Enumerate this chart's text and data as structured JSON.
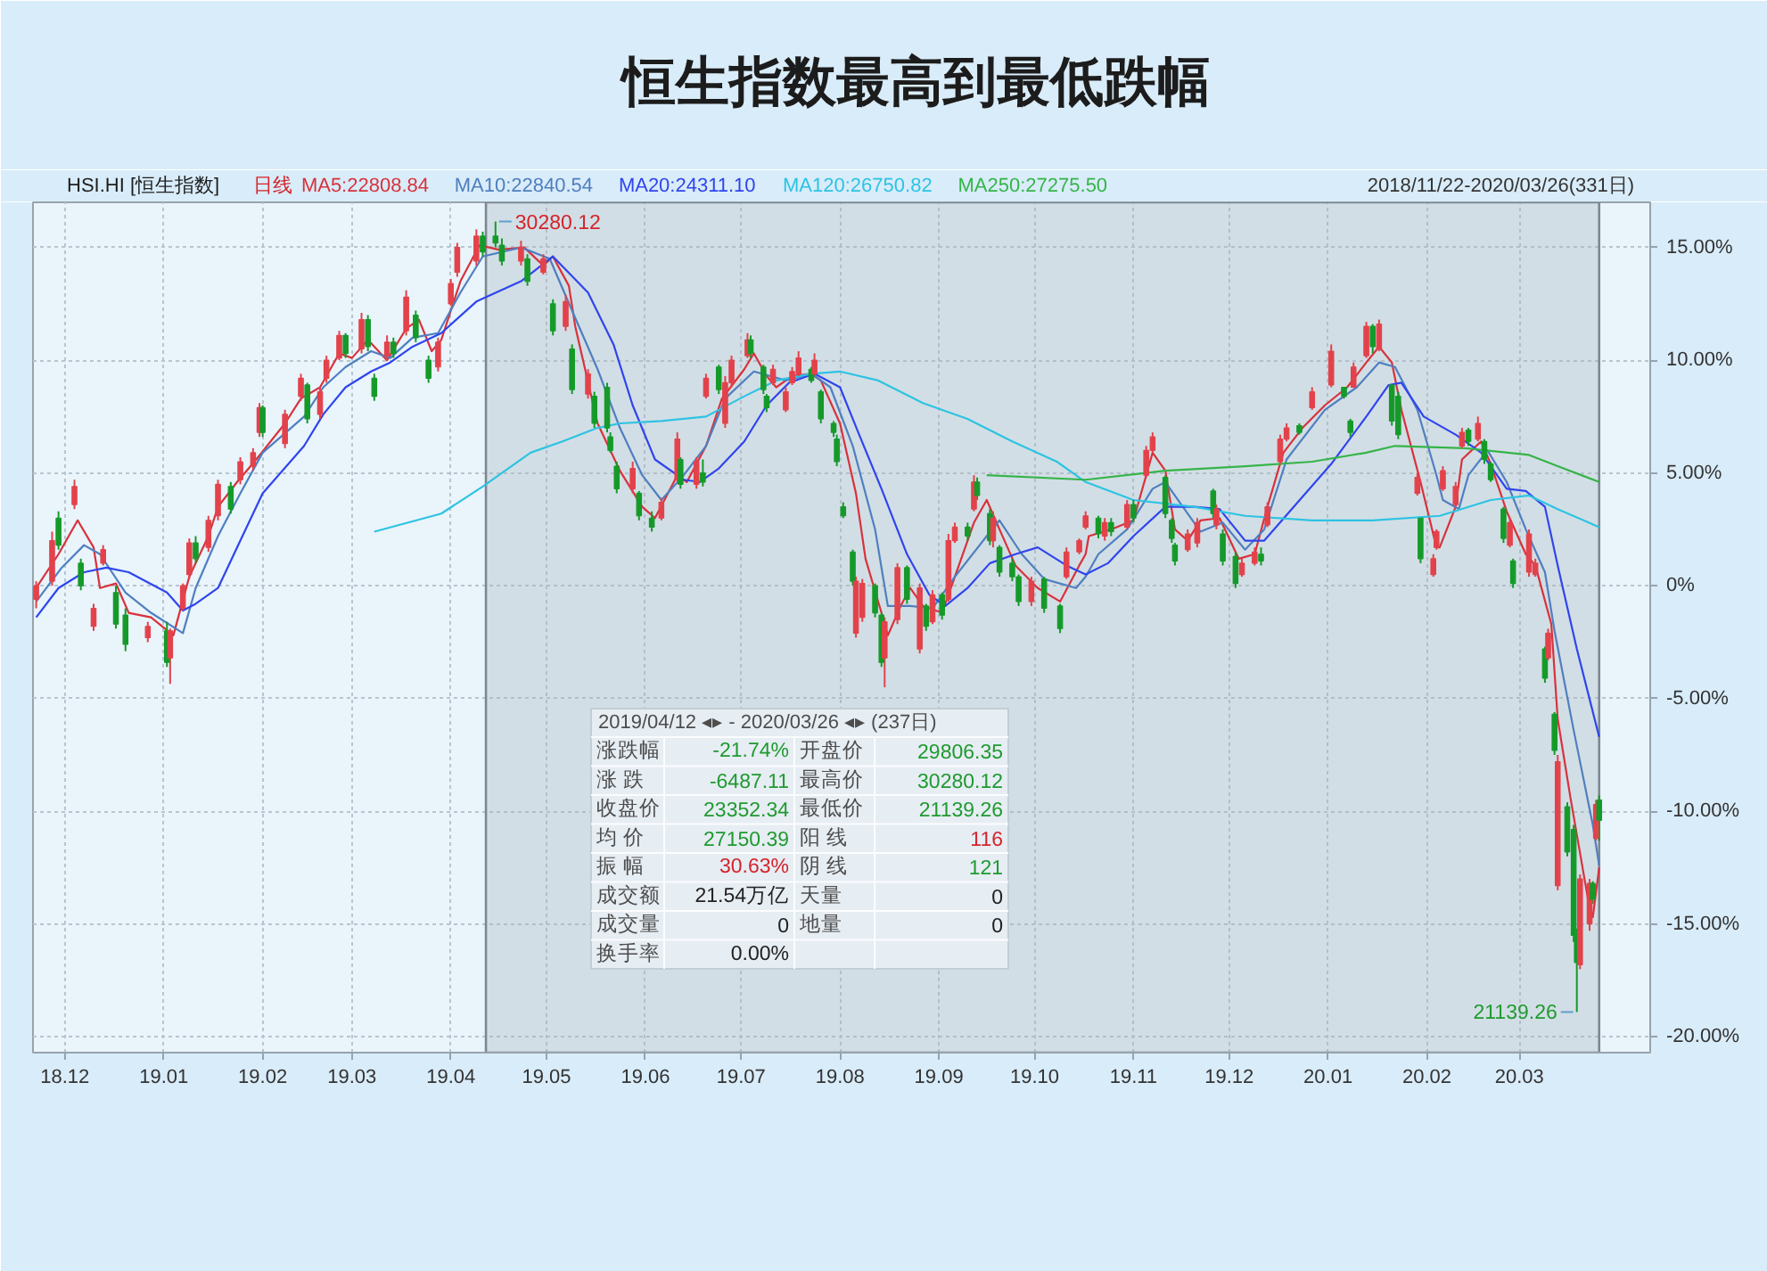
{
  "chart_data": {
    "type": "candlestick",
    "title": "恒生指数最高到最低跌幅",
    "subtitle": "HSI.HI [恒生指数]",
    "x": [
      "2018-11-22",
      "2018-11-27",
      "2018-11-29",
      "2018-12-04",
      "2018-12-06",
      "2018-12-10",
      "2018-12-13",
      "2018-12-17",
      "2018-12-20",
      "2018-12-27",
      "2019-01-02",
      "2019-01-03",
      "2019-01-07",
      "2019-01-09",
      "2019-01-11",
      "2019-01-15",
      "2019-01-18",
      "2019-01-22",
      "2019-01-25",
      "2019-01-29",
      "2019-01-31",
      "2019-02-01",
      "2019-02-08",
      "2019-02-13",
      "2019-02-15",
      "2019-02-19",
      "2019-02-21",
      "2019-02-25",
      "2019-02-27",
      "2019-03-04",
      "2019-03-06",
      "2019-03-08",
      "2019-03-12",
      "2019-03-14",
      "2019-03-18",
      "2019-03-21",
      "2019-03-25",
      "2019-03-28",
      "2019-04-01",
      "2019-04-03",
      "2019-04-09",
      "2019-04-11",
      "2019-04-15",
      "2019-04-17",
      "2019-04-23",
      "2019-04-25",
      "2019-04-30",
      "2019-05-03",
      "2019-05-07",
      "2019-05-09",
      "2019-05-14",
      "2019-05-16",
      "2019-05-20",
      "2019-05-21",
      "2019-05-23",
      "2019-05-28",
      "2019-05-30",
      "2019-06-03",
      "2019-06-06",
      "2019-06-11",
      "2019-06-12",
      "2019-06-17",
      "2019-06-19",
      "2019-06-20",
      "2019-06-24",
      "2019-06-26",
      "2019-06-28",
      "2019-07-03",
      "2019-07-04",
      "2019-07-08",
      "2019-07-09",
      "2019-07-11",
      "2019-07-15",
      "2019-07-17",
      "2019-07-19",
      "2019-07-23",
      "2019-07-24",
      "2019-07-26",
      "2019-07-30",
      "2019-07-31",
      "2019-08-02",
      "2019-08-05",
      "2019-08-06",
      "2019-08-08",
      "2019-08-12",
      "2019-08-14",
      "2019-08-15",
      "2019-08-19",
      "2019-08-22",
      "2019-08-26",
      "2019-08-28",
      "2019-08-30",
      "2019-09-02",
      "2019-09-04",
      "2019-09-06",
      "2019-09-10",
      "2019-09-12",
      "2019-09-13",
      "2019-09-17",
      "2019-09-18",
      "2019-09-20",
      "2019-09-24",
      "2019-09-26",
      "2019-09-30",
      "2019-10-04",
      "2019-10-09",
      "2019-10-11",
      "2019-10-15",
      "2019-10-17",
      "2019-10-21",
      "2019-10-23",
      "2019-10-25",
      "2019-10-30",
      "2019-11-01",
      "2019-11-05",
      "2019-11-07",
      "2019-11-11",
      "2019-11-13",
      "2019-11-14",
      "2019-11-18",
      "2019-11-21",
      "2019-11-26",
      "2019-11-27",
      "2019-11-29",
      "2019-12-03",
      "2019-12-05",
      "2019-12-09",
      "2019-12-11",
      "2019-12-13",
      "2019-12-17",
      "2019-12-19",
      "2019-12-23",
      "2019-12-27",
      "2020-01-02",
      "2020-01-06",
      "2020-01-08",
      "2020-01-09",
      "2020-01-13",
      "2020-01-15",
      "2020-01-17",
      "2020-01-21",
      "2020-01-23",
      "2020-01-29",
      "2020-01-30",
      "2020-02-03",
      "2020-02-04",
      "2020-02-06",
      "2020-02-10",
      "2020-02-12",
      "2020-02-14",
      "2020-02-17",
      "2020-02-19",
      "2020-02-21",
      "2020-02-25",
      "2020-02-27",
      "2020-02-28",
      "2020-03-04",
      "2020-03-06",
      "2020-03-09",
      "2020-03-10",
      "2020-03-12",
      "2020-03-13",
      "2020-03-16",
      "2020-03-18",
      "2020-03-19",
      "2020-03-20",
      "2020-03-23",
      "2020-03-24",
      "2020-03-25",
      "2020-03-26"
    ],
    "ohlc": [
      [
        -0.6,
        0.2,
        -1.0,
        0.0
      ],
      [
        0.2,
        2.4,
        0.0,
        2.0
      ],
      [
        3.0,
        3.3,
        1.6,
        1.8
      ],
      [
        3.6,
        4.7,
        3.4,
        4.4
      ],
      [
        1.0,
        1.2,
        -0.2,
        0.0
      ],
      [
        -1.8,
        -0.8,
        -2.0,
        -1.0
      ],
      [
        1.0,
        1.8,
        0.9,
        1.6
      ],
      [
        -0.3,
        0.0,
        -1.9,
        -1.7
      ],
      [
        -1.3,
        -1.0,
        -2.9,
        -2.6
      ],
      [
        -2.3,
        -1.6,
        -2.5,
        -1.8
      ],
      [
        -2.0,
        -1.6,
        -3.6,
        -3.4
      ],
      [
        -3.2,
        -1.9,
        -4.35,
        -2.0
      ],
      [
        -1.0,
        0.1,
        -1.1,
        0.0
      ],
      [
        0.5,
        2.1,
        0.3,
        1.9
      ],
      [
        1.9,
        2.2,
        1.0,
        1.2
      ],
      [
        1.7,
        3.1,
        1.5,
        2.9
      ],
      [
        3.1,
        4.7,
        2.9,
        4.5
      ],
      [
        4.4,
        4.6,
        3.2,
        3.4
      ],
      [
        4.7,
        5.7,
        4.5,
        5.5
      ],
      [
        5.3,
        6.1,
        5.1,
        5.9
      ],
      [
        6.8,
        8.1,
        6.6,
        7.9
      ],
      [
        7.9,
        8.0,
        6.6,
        6.8
      ],
      [
        6.3,
        7.8,
        6.1,
        7.6
      ],
      [
        8.4,
        9.4,
        8.2,
        9.2
      ],
      [
        8.9,
        9.0,
        7.2,
        7.4
      ],
      [
        7.6,
        8.8,
        7.4,
        8.6
      ],
      [
        9.2,
        10.2,
        9.0,
        10.0
      ],
      [
        10.1,
        11.3,
        10.0,
        11.1
      ],
      [
        11.1,
        11.2,
        10.1,
        10.3
      ],
      [
        10.5,
        12.1,
        10.3,
        11.8
      ],
      [
        11.8,
        12.0,
        10.4,
        10.6
      ],
      [
        9.2,
        9.4,
        8.2,
        8.4
      ],
      [
        10.2,
        11.1,
        10.0,
        10.8
      ],
      [
        10.8,
        11.0,
        10.1,
        10.3
      ],
      [
        11.3,
        13.1,
        11.1,
        12.8
      ],
      [
        12.0,
        12.2,
        10.8,
        11.0
      ],
      [
        10.0,
        10.2,
        9.0,
        9.2
      ],
      [
        9.7,
        11.0,
        9.5,
        10.8
      ],
      [
        12.5,
        13.6,
        12.4,
        13.4
      ],
      [
        13.9,
        15.2,
        13.7,
        15.0
      ],
      [
        14.4,
        15.8,
        14.2,
        15.5
      ],
      [
        15.5,
        15.7,
        14.6,
        14.8
      ],
      [
        15.5,
        16.15,
        15.0,
        15.2
      ],
      [
        15.1,
        15.4,
        14.2,
        14.4
      ],
      [
        14.4,
        15.3,
        14.2,
        15.0
      ],
      [
        14.5,
        14.7,
        13.3,
        13.5
      ],
      [
        13.9,
        14.7,
        13.8,
        14.5
      ],
      [
        12.5,
        12.7,
        11.1,
        11.3
      ],
      [
        11.5,
        12.9,
        11.3,
        12.6
      ],
      [
        10.5,
        10.7,
        8.5,
        8.7
      ],
      [
        8.5,
        9.6,
        8.3,
        9.4
      ],
      [
        8.4,
        8.6,
        7.0,
        7.2
      ],
      [
        8.8,
        9.0,
        6.8,
        7.0
      ],
      [
        6.6,
        6.8,
        5.9,
        6.0
      ],
      [
        5.3,
        5.5,
        4.1,
        4.3
      ],
      [
        4.3,
        5.5,
        4.1,
        5.2
      ],
      [
        4.1,
        4.2,
        2.9,
        3.1
      ],
      [
        3.0,
        3.3,
        2.4,
        2.6
      ],
      [
        3.0,
        3.9,
        2.9,
        3.7
      ],
      [
        4.7,
        6.8,
        4.6,
        6.5
      ],
      [
        5.6,
        5.7,
        4.3,
        4.5
      ],
      [
        4.5,
        5.7,
        4.3,
        5.5
      ],
      [
        5.0,
        5.6,
        4.4,
        4.6
      ],
      [
        8.4,
        9.4,
        8.3,
        9.2
      ],
      [
        9.7,
        9.8,
        8.5,
        8.7
      ],
      [
        7.2,
        9.3,
        7.0,
        9.0
      ],
      [
        9.0,
        10.2,
        8.8,
        10.0
      ],
      [
        10.2,
        11.2,
        10.1,
        10.9
      ],
      [
        10.9,
        11.1,
        10.1,
        10.3
      ],
      [
        9.7,
        9.8,
        8.5,
        8.7
      ],
      [
        8.4,
        8.5,
        7.7,
        7.9
      ],
      [
        9.0,
        9.8,
        8.9,
        9.6
      ],
      [
        7.8,
        8.8,
        7.7,
        8.6
      ],
      [
        9.0,
        9.7,
        8.9,
        9.5
      ],
      [
        9.4,
        10.4,
        9.3,
        10.1
      ],
      [
        9.6,
        9.7,
        9.0,
        9.1
      ],
      [
        9.4,
        10.3,
        9.3,
        10.0
      ],
      [
        8.6,
        8.7,
        7.2,
        7.4
      ],
      [
        7.2,
        7.3,
        6.6,
        6.8
      ],
      [
        6.5,
        6.7,
        5.3,
        5.5
      ],
      [
        3.5,
        3.7,
        3.0,
        3.1
      ],
      [
        1.5,
        1.6,
        0.0,
        0.2
      ],
      [
        -2.1,
        0.4,
        -2.3,
        0.2
      ],
      [
        -1.4,
        0.3,
        -1.6,
        0.1
      ],
      [
        0.0,
        0.1,
        -1.4,
        -1.2
      ],
      [
        -1.3,
        -1.2,
        -3.6,
        -3.4
      ],
      [
        -3.2,
        -1.4,
        -4.5,
        -1.6
      ],
      [
        -1.5,
        1.0,
        -1.7,
        0.8
      ],
      [
        0.8,
        0.9,
        -0.8,
        -0.6
      ],
      [
        -2.8,
        0.1,
        -3.0,
        -0.1
      ],
      [
        -0.9,
        -0.8,
        -2.0,
        -1.8
      ],
      [
        -1.6,
        -0.2,
        -1.7,
        -0.4
      ],
      [
        -0.4,
        -0.3,
        -1.5,
        -1.3
      ],
      [
        -0.6,
        2.3,
        -0.7,
        2.0
      ],
      [
        2.0,
        2.8,
        1.9,
        2.6
      ],
      [
        2.6,
        2.8,
        2.0,
        2.2
      ],
      [
        3.4,
        4.9,
        3.3,
        4.6
      ],
      [
        4.6,
        4.8,
        3.8,
        4.0
      ],
      [
        3.2,
        3.4,
        1.8,
        2.0
      ],
      [
        2.0,
        3.3,
        1.7,
        3.0
      ],
      [
        1.7,
        1.8,
        0.4,
        0.6
      ],
      [
        1.0,
        1.2,
        0.2,
        0.4
      ],
      [
        0.4,
        0.5,
        -0.9,
        -0.7
      ],
      [
        -0.7,
        0.4,
        -0.9,
        0.2
      ],
      [
        0.3,
        0.4,
        -1.2,
        -1.0
      ],
      [
        -0.9,
        -0.8,
        -2.1,
        -1.9
      ],
      [
        0.4,
        1.7,
        0.3,
        1.5
      ],
      [
        1.5,
        2.1,
        1.4,
        2.0
      ],
      [
        2.6,
        3.3,
        2.5,
        3.1
      ],
      [
        3.0,
        3.1,
        2.1,
        2.3
      ],
      [
        2.2,
        3.0,
        2.0,
        2.8
      ],
      [
        2.8,
        3.0,
        2.2,
        2.4
      ],
      [
        2.6,
        3.8,
        2.5,
        3.6
      ],
      [
        3.6,
        3.8,
        2.8,
        3.0
      ],
      [
        4.9,
        6.2,
        4.8,
        6.0
      ],
      [
        6.0,
        6.8,
        5.9,
        6.6
      ],
      [
        4.8,
        4.9,
        3.0,
        3.2
      ],
      [
        2.9,
        3.0,
        1.9,
        2.1
      ],
      [
        1.8,
        1.9,
        0.9,
        1.1
      ],
      [
        1.6,
        2.5,
        1.5,
        2.3
      ],
      [
        1.9,
        3.0,
        1.7,
        2.8
      ],
      [
        4.2,
        4.3,
        3.0,
        3.2
      ],
      [
        2.7,
        3.6,
        2.5,
        3.4
      ],
      [
        2.3,
        2.5,
        0.9,
        1.1
      ],
      [
        1.3,
        1.5,
        -0.1,
        0.1
      ],
      [
        0.5,
        1.2,
        0.4,
        1.0
      ],
      [
        1.0,
        1.7,
        0.9,
        1.5
      ],
      [
        1.4,
        1.7,
        0.9,
        1.1
      ],
      [
        2.7,
        3.7,
        2.6,
        3.5
      ],
      [
        5.5,
        6.7,
        5.4,
        6.5
      ],
      [
        6.5,
        7.2,
        6.4,
        7.0
      ],
      [
        7.1,
        7.2,
        6.7,
        6.8
      ],
      [
        7.9,
        8.8,
        7.8,
        8.6
      ],
      [
        8.9,
        10.7,
        8.8,
        10.4
      ],
      [
        8.8,
        8.8,
        8.3,
        8.4
      ],
      [
        7.3,
        7.4,
        6.6,
        6.8
      ],
      [
        8.8,
        9.9,
        8.8,
        9.7
      ],
      [
        10.2,
        11.7,
        10.1,
        11.5
      ],
      [
        11.5,
        11.6,
        10.3,
        10.6
      ],
      [
        10.5,
        11.8,
        10.4,
        11.6
      ],
      [
        8.9,
        8.9,
        7.1,
        7.3
      ],
      [
        8.4,
        8.6,
        6.5,
        6.7
      ],
      [
        4.1,
        5.0,
        4.0,
        4.8
      ],
      [
        3.0,
        3.0,
        1.0,
        1.2
      ],
      [
        0.5,
        1.4,
        0.4,
        1.2
      ],
      [
        1.7,
        2.5,
        1.6,
        2.4
      ],
      [
        4.3,
        5.3,
        4.2,
        5.1
      ],
      [
        3.6,
        4.6,
        3.5,
        4.4
      ],
      [
        6.2,
        7.0,
        6.1,
        6.8
      ],
      [
        6.9,
        7.0,
        6.2,
        6.4
      ],
      [
        6.5,
        7.5,
        6.4,
        7.2
      ],
      [
        6.4,
        6.5,
        5.4,
        5.6
      ],
      [
        5.4,
        5.5,
        4.6,
        4.7
      ],
      [
        3.4,
        3.5,
        1.9,
        2.1
      ],
      [
        1.8,
        3.0,
        1.7,
        2.8
      ],
      [
        1.1,
        1.2,
        -0.1,
        0.1
      ],
      [
        0.6,
        2.5,
        0.4,
        2.3
      ],
      [
        0.5,
        1.2,
        0.4,
        1.0
      ],
      [
        -2.8,
        -2.7,
        -4.3,
        -4.1
      ],
      [
        -3.2,
        -1.9,
        -3.3,
        -2.1
      ],
      [
        -5.7,
        -5.6,
        -7.5,
        -7.3
      ],
      [
        -13.3,
        -7.5,
        -13.5,
        -7.8
      ],
      [
        -9.8,
        -9.6,
        -12.0,
        -11.8
      ],
      [
        -10.8,
        -10.6,
        -15.8,
        -15.5
      ],
      [
        -15.5,
        -15.2,
        -18.9,
        -16.7
      ],
      [
        -16.8,
        -12.8,
        -17.0,
        -13.0
      ],
      [
        -15.0,
        -13.0,
        -15.3,
        -13.2
      ],
      [
        -13.2,
        -13.1,
        -14.1,
        -13.9
      ],
      [
        -11.2,
        -9.5,
        -11.3,
        -9.7
      ],
      [
        -9.5,
        -9.3,
        -11.3,
        -10.4
      ]
    ],
    "colors": [
      "#e3424b",
      "#e3424b",
      "#159a2a",
      "#e3424b",
      "#159a2a",
      "#e3424b",
      "#e3424b",
      "#159a2a",
      "#159a2a",
      "#e3424b",
      "#159a2a",
      "#e3424b",
      "#e3424b",
      "#e3424b",
      "#159a2a",
      "#e3424b",
      "#e3424b",
      "#159a2a",
      "#e3424b",
      "#e3424b",
      "#e3424b",
      "#159a2a",
      "#e3424b",
      "#e3424b",
      "#159a2a",
      "#e3424b",
      "#e3424b",
      "#e3424b",
      "#159a2a",
      "#e3424b",
      "#159a2a",
      "#159a2a",
      "#e3424b",
      "#159a2a",
      "#e3424b",
      "#159a2a",
      "#159a2a",
      "#e3424b",
      "#e3424b",
      "#e3424b",
      "#e3424b",
      "#159a2a",
      "#159a2a",
      "#159a2a",
      "#e3424b",
      "#159a2a",
      "#e3424b",
      "#159a2a",
      "#e3424b",
      "#159a2a",
      "#e3424b",
      "#159a2a",
      "#159a2a",
      "#159a2a",
      "#159a2a",
      "#e3424b",
      "#159a2a",
      "#159a2a",
      "#e3424b",
      "#e3424b",
      "#159a2a",
      "#e3424b",
      "#159a2a",
      "#e3424b",
      "#159a2a",
      "#e3424b",
      "#e3424b",
      "#e3424b",
      "#159a2a",
      "#159a2a",
      "#159a2a",
      "#e3424b",
      "#e3424b",
      "#e3424b",
      "#e3424b",
      "#159a2a",
      "#e3424b",
      "#159a2a",
      "#159a2a",
      "#159a2a",
      "#159a2a",
      "#159a2a",
      "#e3424b",
      "#e3424b",
      "#159a2a",
      "#159a2a",
      "#e3424b",
      "#e3424b",
      "#159a2a",
      "#e3424b",
      "#159a2a",
      "#e3424b",
      "#159a2a",
      "#e3424b",
      "#e3424b",
      "#159a2a",
      "#e3424b",
      "#159a2a",
      "#159a2a",
      "#e3424b",
      "#159a2a",
      "#159a2a",
      "#159a2a",
      "#e3424b",
      "#159a2a",
      "#159a2a",
      "#e3424b",
      "#e3424b",
      "#e3424b",
      "#159a2a",
      "#e3424b",
      "#159a2a",
      "#e3424b",
      "#159a2a",
      "#e3424b",
      "#e3424b",
      "#159a2a",
      "#159a2a",
      "#159a2a",
      "#e3424b",
      "#e3424b",
      "#159a2a",
      "#e3424b",
      "#159a2a",
      "#159a2a",
      "#e3424b",
      "#e3424b",
      "#159a2a",
      "#e3424b",
      "#e3424b",
      "#e3424b",
      "#159a2a",
      "#e3424b",
      "#e3424b",
      "#159a2a",
      "#159a2a",
      "#e3424b",
      "#e3424b",
      "#159a2a",
      "#e3424b",
      "#159a2a",
      "#159a2a",
      "#e3424b",
      "#159a2a",
      "#e3424b",
      "#e3424b",
      "#e3424b",
      "#e3424b",
      "#e3424b",
      "#159a2a",
      "#e3424b",
      "#159a2a",
      "#159a2a",
      "#159a2a",
      "#e3424b",
      "#159a2a",
      "#e3424b",
      "#e3424b",
      "#159a2a",
      "#e3424b",
      "#159a2a",
      "#e3424b",
      "#159a2a",
      "#159a2a",
      "#159a2a",
      "#e3424b",
      "#e3424b",
      "#159a2a",
      "#e3424b",
      "#159a2a"
    ],
    "series": [
      {
        "type": "line",
        "name": "MA5:22808.84",
        "color": "#d8323c",
        "x": [
          "2018-11-22",
          "2018-11-29",
          "2018-12-05",
          "2018-12-10",
          "2018-12-12",
          "2018-12-17",
          "2018-12-21",
          "2018-12-28",
          "2019-01-04",
          "2019-01-09",
          "2019-01-15",
          "2019-01-18",
          "2019-01-24",
          "2019-01-30",
          "2019-02-08",
          "2019-02-13",
          "2019-02-19",
          "2019-02-25",
          "2019-03-01",
          "2019-03-06",
          "2019-03-12",
          "2019-03-18",
          "2019-03-22",
          "2019-03-26",
          "2019-03-29",
          "2019-04-04",
          "2019-04-10",
          "2019-04-16",
          "2019-04-24",
          "2019-04-30",
          "2019-05-03",
          "2019-05-08",
          "2019-05-10",
          "2019-05-17",
          "2019-05-24",
          "2019-05-31",
          "2019-06-04",
          "2019-06-11",
          "2019-06-14",
          "2019-06-20",
          "2019-06-25",
          "2019-07-02",
          "2019-07-05",
          "2019-07-09",
          "2019-07-12",
          "2019-07-17",
          "2019-07-23",
          "2019-07-26",
          "2019-08-01",
          "2019-08-06",
          "2019-08-09",
          "2019-08-14",
          "2019-08-16",
          "2019-08-20",
          "2019-08-23",
          "2019-08-27",
          "2019-09-02",
          "2019-09-06",
          "2019-09-12",
          "2019-09-16",
          "2019-09-20",
          "2019-09-25",
          "2019-10-02",
          "2019-10-09",
          "2019-10-15",
          "2019-10-17",
          "2019-10-18",
          "2019-10-25",
          "2019-11-01",
          "2019-11-07",
          "2019-11-11",
          "2019-11-14",
          "2019-11-18",
          "2019-11-22",
          "2019-11-28",
          "2019-12-04",
          "2019-12-09",
          "2019-12-13",
          "2019-12-18",
          "2019-12-24",
          "2019-12-31",
          "2020-01-07",
          "2020-01-13",
          "2020-01-17",
          "2020-01-21",
          "2020-01-24",
          "2020-01-30",
          "2020-02-04",
          "2020-02-05",
          "2020-02-10",
          "2020-02-12",
          "2020-02-18",
          "2020-02-21",
          "2020-02-26",
          "2020-03-03",
          "2020-03-06",
          "2020-03-11",
          "2020-03-13",
          "2020-03-17",
          "2020-03-23",
          "2020-03-24",
          "2020-03-26"
        ],
        "values": [
          -0.1,
          1.4,
          2.9,
          1.7,
          -0.1,
          0.1,
          -1.2,
          -1.4,
          -2.2,
          0.4,
          2.2,
          3.5,
          4.6,
          5.6,
          7.2,
          8.3,
          8.8,
          10.3,
          10.1,
          10.9,
          10.0,
          11.4,
          11.8,
          10.4,
          10.9,
          13.5,
          15.1,
          14.9,
          15.0,
          14.2,
          14.6,
          13.3,
          11.5,
          7.2,
          5.1,
          3.5,
          3.0,
          4.9,
          4.6,
          6.2,
          8.3,
          9.6,
          10.3,
          9.3,
          8.8,
          9.3,
          9.4,
          9.1,
          7.2,
          4.1,
          1.2,
          -1.2,
          -2.2,
          -0.9,
          -0.1,
          -0.9,
          -1.2,
          0.4,
          2.8,
          3.8,
          2.5,
          0.9,
          -0.1,
          -0.7,
          0.9,
          1.4,
          2.2,
          2.5,
          2.9,
          5.9,
          5.1,
          2.5,
          2.0,
          2.9,
          3.0,
          1.2,
          1.4,
          3.5,
          5.9,
          7.0,
          8.0,
          8.8,
          9.9,
          10.6,
          9.9,
          7.8,
          4.6,
          1.7,
          1.7,
          3.5,
          5.6,
          6.4,
          5.4,
          3.3,
          1.4,
          0.9,
          -1.7,
          -5.9,
          -9.4,
          -14.3,
          -14.7,
          -12.5
        ]
      },
      {
        "type": "line",
        "name": "MA10:22840.54",
        "color": "#4f7fc0",
        "x": [
          "2018-11-22",
          "2018-11-30",
          "2018-12-07",
          "2018-12-12",
          "2018-12-20",
          "2018-12-28",
          "2019-01-07",
          "2019-01-11",
          "2019-01-18",
          "2019-01-25",
          "2019-02-01",
          "2019-02-14",
          "2019-02-20",
          "2019-02-27",
          "2019-03-07",
          "2019-03-13",
          "2019-03-20",
          "2019-03-28",
          "2019-04-04",
          "2019-04-11",
          "2019-04-23",
          "2019-05-02",
          "2019-05-09",
          "2019-05-17",
          "2019-05-24",
          "2019-05-31",
          "2019-06-06",
          "2019-06-13",
          "2019-06-20",
          "2019-06-26",
          "2019-07-05",
          "2019-07-15",
          "2019-07-23",
          "2019-07-29",
          "2019-08-05",
          "2019-08-12",
          "2019-08-16",
          "2019-08-23",
          "2019-08-30",
          "2019-09-06",
          "2019-09-16",
          "2019-09-20",
          "2019-09-27",
          "2019-10-04",
          "2019-10-14",
          "2019-10-17",
          "2019-10-21",
          "2019-10-30",
          "2019-11-07",
          "2019-11-11",
          "2019-11-15",
          "2019-11-22",
          "2019-11-29",
          "2019-12-06",
          "2019-12-12",
          "2019-12-19",
          "2019-12-31",
          "2020-01-10",
          "2020-01-17",
          "2020-01-22",
          "2020-01-29",
          "2020-02-04",
          "2020-02-06",
          "2020-02-11",
          "2020-02-14",
          "2020-02-20",
          "2020-02-26",
          "2020-03-03",
          "2020-03-09",
          "2020-03-12",
          "2020-03-18",
          "2020-03-24",
          "2020-03-26"
        ],
        "values": [
          -0.7,
          0.8,
          1.8,
          1.4,
          -0.3,
          -1.2,
          -2.1,
          -0.1,
          2.2,
          4.1,
          5.9,
          7.5,
          8.8,
          9.7,
          10.4,
          10.1,
          11.0,
          11.2,
          13.0,
          14.6,
          15.0,
          14.5,
          12.2,
          9.6,
          7.0,
          4.9,
          3.8,
          4.9,
          6.2,
          8.3,
          9.5,
          9.1,
          9.4,
          8.8,
          6.2,
          2.5,
          -0.9,
          -0.9,
          -1.0,
          0.4,
          2.2,
          2.9,
          1.4,
          0.3,
          -0.1,
          0.4,
          1.4,
          2.5,
          4.3,
          4.6,
          3.8,
          2.4,
          2.8,
          1.6,
          2.5,
          5.6,
          7.8,
          8.8,
          9.9,
          9.7,
          7.8,
          4.9,
          3.8,
          3.4,
          4.9,
          6.0,
          4.6,
          2.5,
          0.6,
          -2.0,
          -6.4,
          -10.6,
          -12.4
        ]
      },
      {
        "type": "line",
        "name": "MA20:24311.10",
        "color": "#2f45ee",
        "x": [
          "2018-11-22",
          "2018-11-29",
          "2018-12-07",
          "2018-12-14",
          "2018-12-21",
          "2019-01-02",
          "2019-01-07",
          "2019-01-11",
          "2019-01-18",
          "2019-01-25",
          "2019-02-01",
          "2019-02-14",
          "2019-02-20",
          "2019-02-27",
          "2019-03-07",
          "2019-03-13",
          "2019-03-20",
          "2019-03-29",
          "2019-04-09",
          "2019-04-23",
          "2019-05-03",
          "2019-05-14",
          "2019-05-22",
          "2019-05-28",
          "2019-06-04",
          "2019-06-13",
          "2019-06-18",
          "2019-06-24",
          "2019-07-02",
          "2019-07-09",
          "2019-07-16",
          "2019-07-24",
          "2019-08-01",
          "2019-08-07",
          "2019-08-14",
          "2019-08-22",
          "2019-08-29",
          "2019-09-03",
          "2019-09-10",
          "2019-09-17",
          "2019-09-25",
          "2019-10-02",
          "2019-10-11",
          "2019-10-17",
          "2019-10-24",
          "2019-11-01",
          "2019-11-11",
          "2019-11-20",
          "2019-11-28",
          "2019-12-06",
          "2019-12-12",
          "2019-12-20",
          "2020-01-02",
          "2020-01-13",
          "2020-01-20",
          "2020-01-24",
          "2020-01-31",
          "2020-02-10",
          "2020-02-18",
          "2020-02-26",
          "2020-03-03",
          "2020-03-09",
          "2020-03-13",
          "2020-03-19",
          "2020-03-26"
        ],
        "values": [
          -1.4,
          -0.1,
          0.6,
          0.8,
          0.6,
          -0.3,
          -1.1,
          -0.8,
          -0.1,
          2.0,
          4.1,
          6.2,
          7.6,
          8.8,
          9.5,
          9.9,
          10.6,
          11.2,
          12.6,
          13.5,
          14.6,
          13.0,
          10.7,
          8.0,
          5.6,
          4.7,
          4.6,
          5.2,
          6.4,
          8.0,
          9.0,
          9.4,
          8.8,
          6.7,
          4.3,
          1.4,
          -0.4,
          -0.9,
          -0.1,
          1.0,
          1.4,
          1.7,
          0.9,
          0.5,
          1.0,
          2.2,
          3.5,
          3.5,
          3.4,
          2.0,
          2.0,
          3.3,
          5.4,
          7.5,
          8.9,
          9.0,
          7.5,
          6.7,
          5.9,
          4.3,
          4.2,
          3.5,
          0.9,
          -2.8,
          -6.7
        ]
      },
      {
        "type": "line",
        "name": "MA120:26750.82",
        "color": "#2dc3e3",
        "x": [
          "2019-03-08",
          "2019-03-29",
          "2019-04-11",
          "2019-04-26",
          "2019-05-06",
          "2019-05-17",
          "2019-05-24",
          "2019-06-06",
          "2019-06-20",
          "2019-07-02",
          "2019-07-12",
          "2019-07-23",
          "2019-08-01",
          "2019-08-13",
          "2019-08-27",
          "2019-09-10",
          "2019-09-24",
          "2019-10-08",
          "2019-10-17",
          "2019-11-01",
          "2019-11-20",
          "2019-12-06",
          "2019-12-27",
          "2020-01-15",
          "2020-02-05",
          "2020-02-21",
          "2020-03-04",
          "2020-03-13",
          "2020-03-26"
        ],
        "values": [
          2.4,
          3.2,
          4.4,
          5.9,
          6.4,
          7.0,
          7.2,
          7.3,
          7.5,
          8.4,
          9.1,
          9.4,
          9.5,
          9.1,
          8.1,
          7.4,
          6.4,
          5.5,
          4.6,
          3.8,
          3.5,
          3.1,
          2.9,
          2.9,
          3.1,
          3.8,
          4.0,
          3.4,
          2.6
        ]
      },
      {
        "type": "line",
        "name": "MA250:27275.50",
        "color": "#35b44a",
        "x": [
          "2019-09-16",
          "2019-10-17",
          "2019-11-11",
          "2019-12-06",
          "2019-12-27",
          "2020-01-13",
          "2020-01-22",
          "2020-02-13",
          "2020-03-04",
          "2020-03-13",
          "2020-03-26"
        ],
        "values": [
          4.9,
          4.7,
          5.1,
          5.3,
          5.5,
          5.9,
          6.2,
          6.1,
          5.8,
          5.3,
          4.6
        ]
      }
    ],
    "xlim": [
      "2018-11-21",
      "2020-04-11"
    ],
    "xticks": [
      {
        "value": "2018-12",
        "label": "18.12"
      },
      {
        "value": "2019-01",
        "label": "19.01"
      },
      {
        "value": "2019-02",
        "label": "19.02"
      },
      {
        "value": "2019-03",
        "label": "19.03"
      },
      {
        "value": "2019-04",
        "label": "19.04"
      },
      {
        "value": "2019-05",
        "label": "19.05"
      },
      {
        "value": "2019-06",
        "label": "19.06"
      },
      {
        "value": "2019-07",
        "label": "19.07"
      },
      {
        "value": "2019-08",
        "label": "19.08"
      },
      {
        "value": "2019-09",
        "label": "19.09"
      },
      {
        "value": "2019-10",
        "label": "19.10"
      },
      {
        "value": "2019-11",
        "label": "19.11"
      },
      {
        "value": "2019-12",
        "label": "19.12"
      },
      {
        "value": "2020-01",
        "label": "20.01"
      },
      {
        "value": "2020-02",
        "label": "20.02"
      },
      {
        "value": "2020-03",
        "label": "20.03"
      }
    ],
    "ylim": [
      -20.7,
      17.0
    ],
    "yticks": [
      {
        "value": 15,
        "label": "15.00%"
      },
      {
        "value": 10,
        "label": "10.00%"
      },
      {
        "value": 5,
        "label": "5.00%"
      },
      {
        "value": 0,
        "label": "0%"
      },
      {
        "value": -5,
        "label": "-5.00%"
      },
      {
        "value": -10,
        "label": "-10.00%"
      },
      {
        "value": -15,
        "label": "-15.00%"
      },
      {
        "value": -20,
        "label": "-20.00%"
      }
    ],
    "bands": [
      {
        "axis": "x",
        "from": "2019-04-12",
        "to": "2020-03-26",
        "color": "#a9b4be"
      }
    ],
    "annotations": [
      "日线",
      "2018/11/22-2020/03/26(331日)",
      "2019/04/12 ◂▸ - 2020/03/26 ◂▸ (237日)",
      "涨跌幅",
      "-21.74%",
      "开盘价",
      "29806.35",
      "涨 跌",
      "-6487.11",
      "最高价",
      "30280.12",
      "收盘价",
      "23352.34",
      "最低价",
      "21139.26",
      "均 价",
      "27150.39",
      "阳 线",
      "116",
      "振 幅",
      "30.63%",
      "阴 线",
      "121",
      "成交额",
      "21.54万亿",
      "天量",
      "0",
      "成交量",
      "0",
      "地量",
      "0",
      "换手率",
      "0.00%",
      {
        "text": "30280.12",
        "x": "2019-04-15",
        "y": 16.15
      },
      {
        "text": "21139.26",
        "x": "2020-03-19",
        "y": -18.9
      }
    ],
    "grid": true,
    "legend": "top"
  }
}
